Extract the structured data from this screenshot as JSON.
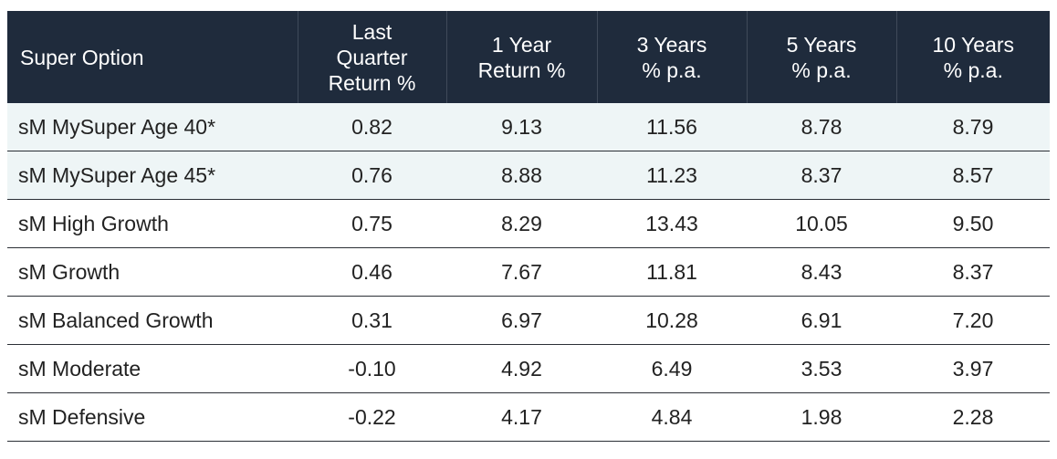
{
  "table": {
    "headers": [
      "Super Option",
      "Last\nQuarter\nReturn %",
      "1 Year\nReturn %",
      "3 Years\n% p.a.",
      "5 Years\n% p.a.",
      "10 Years\n% p.a."
    ],
    "rows": [
      [
        "sM MySuper Age 40*",
        "0.82",
        "9.13",
        "11.56",
        "8.78",
        "8.79"
      ],
      [
        "sM MySuper Age 45*",
        "0.76",
        "8.88",
        "11.23",
        "8.37",
        "8.57"
      ],
      [
        "sM High Growth",
        "0.75",
        "8.29",
        "13.43",
        "10.05",
        "9.50"
      ],
      [
        "sM Growth",
        "0.46",
        "7.67",
        "11.81",
        "8.43",
        "8.37"
      ],
      [
        "sM Balanced Growth",
        "0.31",
        "6.97",
        "10.28",
        "6.91",
        "7.20"
      ],
      [
        "sM Moderate",
        "-0.10",
        "4.92",
        "6.49",
        "3.53",
        "3.97"
      ],
      [
        "sM Defensive",
        "-0.22",
        "4.17",
        "4.84",
        "1.98",
        "2.28"
      ]
    ]
  },
  "colors": {
    "header_bg": "#1f2b3c",
    "shaded_row_bg": "#eef5f6",
    "rule": "#2b2f36"
  }
}
